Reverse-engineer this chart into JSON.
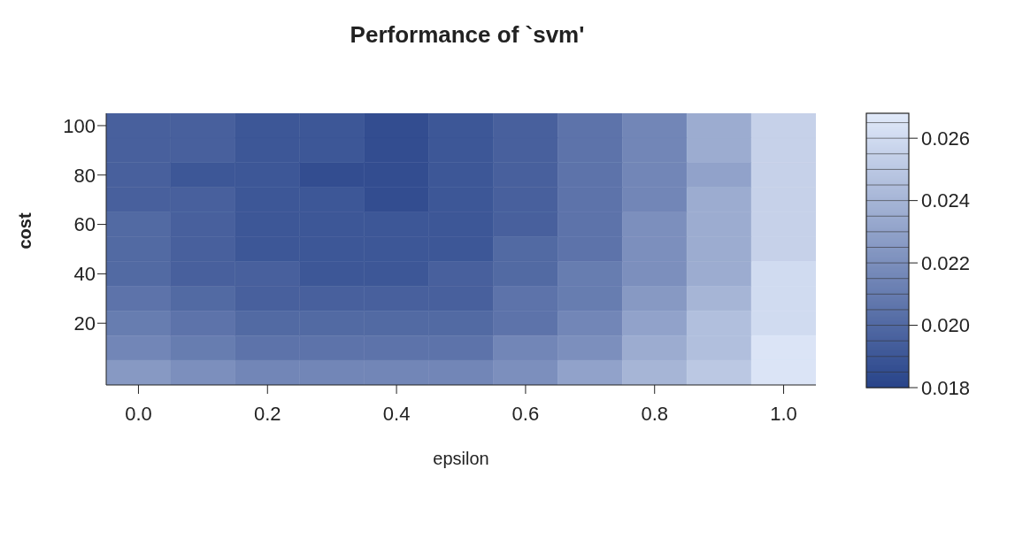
{
  "chart_data": {
    "type": "heatmap",
    "title": "Performance of `svm'",
    "xlabel": "epsilon",
    "ylabel": "cost",
    "categories": [
      "0.0",
      null,
      "0.2",
      null,
      "0.4",
      null,
      "0.6",
      null,
      "0.8",
      null,
      "1.0"
    ],
    "y_categories": [
      "100",
      null,
      "80",
      null,
      "60",
      null,
      "40",
      null,
      "20",
      null,
      null
    ],
    "cells": [
      [
        0.0195,
        0.0195,
        0.019,
        0.019,
        0.0185,
        0.019,
        0.0195,
        0.0205,
        0.0215,
        0.0235,
        0.0255
      ],
      [
        0.0195,
        0.0195,
        0.019,
        0.019,
        0.0185,
        0.019,
        0.0195,
        0.0205,
        0.0215,
        0.0235,
        0.0255
      ],
      [
        0.0195,
        0.019,
        0.019,
        0.0185,
        0.0185,
        0.019,
        0.0195,
        0.0205,
        0.0215,
        0.023,
        0.0255
      ],
      [
        0.0195,
        0.0195,
        0.019,
        0.019,
        0.0185,
        0.019,
        0.0195,
        0.0205,
        0.0215,
        0.0235,
        0.0255
      ],
      [
        0.02,
        0.0195,
        0.019,
        0.019,
        0.019,
        0.019,
        0.0195,
        0.0205,
        0.022,
        0.0235,
        0.0255
      ],
      [
        0.02,
        0.0195,
        0.019,
        0.019,
        0.019,
        0.019,
        0.02,
        0.0205,
        0.022,
        0.0235,
        0.0255
      ],
      [
        0.02,
        0.0195,
        0.0195,
        0.019,
        0.019,
        0.0195,
        0.02,
        0.021,
        0.022,
        0.0235,
        0.026
      ],
      [
        0.0205,
        0.02,
        0.0195,
        0.0195,
        0.0195,
        0.0195,
        0.0205,
        0.021,
        0.0225,
        0.024,
        0.026
      ],
      [
        0.021,
        0.0205,
        0.02,
        0.02,
        0.02,
        0.02,
        0.0205,
        0.0215,
        0.023,
        0.0245,
        0.026
      ],
      [
        0.0215,
        0.021,
        0.0205,
        0.0205,
        0.0205,
        0.0205,
        0.0215,
        0.022,
        0.0235,
        0.0245,
        0.0265
      ],
      [
        0.0225,
        0.022,
        0.0215,
        0.0215,
        0.0215,
        0.0215,
        0.022,
        0.023,
        0.024,
        0.025,
        0.0265
      ]
    ],
    "clim": [
      0.018,
      0.0268
    ],
    "cticks": [
      {
        "value": 0.018,
        "label": "0.018"
      },
      {
        "value": 0.02,
        "label": "0.020"
      },
      {
        "value": 0.022,
        "label": "0.022"
      },
      {
        "value": 0.024,
        "label": "0.024"
      },
      {
        "value": 0.026,
        "label": "0.026"
      }
    ]
  }
}
